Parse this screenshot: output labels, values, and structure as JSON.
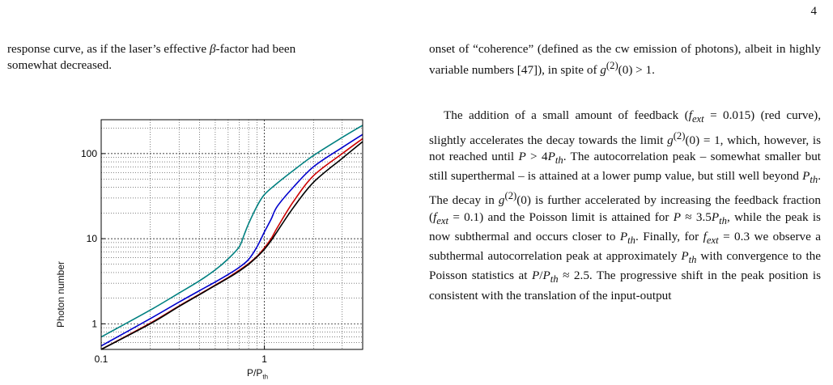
{
  "page": {
    "number": "4"
  },
  "left_text": {
    "line1": "response curve, as if the laser’s effective β-factor had been",
    "line2": "somewhat decreased."
  },
  "right_text": {
    "para1": "onset of “coherence” (defined as the cw emission of photons), albeit in highly variable numbers [47]), in spite of g(2)(0) > 1.",
    "para2": "The addition of a small amount of feedback (fext = 0.015) (red curve), slightly accelerates the decay towards the limit g(2)(0) = 1, which, however, is not reached until P > 4Pth. The autocorrelation peak – somewhat smaller but still superthermal – is attained at a lower pump value, but still well beyond Pth. The decay in g(2)(0) is further accelerated by increasing the feedback fraction (fext = 0.1) and the Poisson limit is attained for P ≈ 3.5Pth, while the peak is now subthermal and occurs closer to Pth. Finally, for fext = 0.3 we observe a subthermal autocorrelation peak at approximately Pth with convergence to the Poisson statistics at P/Pth ≈ 2.5. The progressive shift in the peak position is consistent with the translation of the input-output"
  },
  "chart_data": {
    "type": "line",
    "xlabel": "P/P_th",
    "ylabel": "Photon number",
    "x_scale": "log",
    "y_scale": "log",
    "xlim": [
      0.1,
      4
    ],
    "ylim": [
      0.5,
      250
    ],
    "x_tick_labels": [
      "0.1",
      "1"
    ],
    "y_tick_labels": [
      "1",
      "10",
      "100"
    ],
    "grid": true,
    "series": [
      {
        "color": "#008080",
        "points": [
          [
            0.1,
            0.7
          ],
          [
            0.2,
            1.45
          ],
          [
            0.3,
            2.3
          ],
          [
            0.4,
            3.2
          ],
          [
            0.5,
            4.3
          ],
          [
            0.6,
            5.8
          ],
          [
            0.7,
            8.0
          ],
          [
            0.75,
            11
          ],
          [
            0.8,
            15
          ],
          [
            0.9,
            24
          ],
          [
            1.0,
            33
          ],
          [
            1.2,
            45
          ],
          [
            1.5,
            63
          ],
          [
            2.0,
            95
          ],
          [
            3.0,
            155
          ],
          [
            4.0,
            215
          ]
        ]
      },
      {
        "color": "#0000cc",
        "points": [
          [
            0.1,
            0.55
          ],
          [
            0.2,
            1.15
          ],
          [
            0.3,
            1.8
          ],
          [
            0.4,
            2.45
          ],
          [
            0.5,
            3.1
          ],
          [
            0.6,
            3.8
          ],
          [
            0.7,
            4.6
          ],
          [
            0.8,
            5.7
          ],
          [
            0.9,
            8.0
          ],
          [
            1.0,
            12
          ],
          [
            1.1,
            17
          ],
          [
            1.2,
            24
          ],
          [
            1.5,
            40
          ],
          [
            2.0,
            70
          ],
          [
            3.0,
            118
          ],
          [
            4.0,
            168
          ]
        ]
      },
      {
        "color": "#cc0000",
        "points": [
          [
            0.1,
            0.5
          ],
          [
            0.2,
            1.02
          ],
          [
            0.3,
            1.62
          ],
          [
            0.4,
            2.22
          ],
          [
            0.5,
            2.85
          ],
          [
            0.6,
            3.5
          ],
          [
            0.7,
            4.25
          ],
          [
            0.8,
            5.1
          ],
          [
            0.9,
            6.2
          ],
          [
            1.0,
            7.8
          ],
          [
            1.1,
            10
          ],
          [
            1.2,
            13.5
          ],
          [
            1.5,
            27
          ],
          [
            2.0,
            55
          ],
          [
            3.0,
            100
          ],
          [
            4.0,
            150
          ]
        ]
      },
      {
        "color": "#000000",
        "points": [
          [
            0.1,
            0.5
          ],
          [
            0.2,
            1.0
          ],
          [
            0.3,
            1.6
          ],
          [
            0.4,
            2.2
          ],
          [
            0.5,
            2.82
          ],
          [
            0.6,
            3.45
          ],
          [
            0.7,
            4.15
          ],
          [
            0.8,
            5.0
          ],
          [
            0.9,
            6.1
          ],
          [
            1.0,
            7.5
          ],
          [
            1.1,
            9.5
          ],
          [
            1.2,
            12.2
          ],
          [
            1.5,
            23
          ],
          [
            2.0,
            46
          ],
          [
            3.0,
            88
          ],
          [
            4.0,
            138
          ]
        ]
      }
    ]
  }
}
